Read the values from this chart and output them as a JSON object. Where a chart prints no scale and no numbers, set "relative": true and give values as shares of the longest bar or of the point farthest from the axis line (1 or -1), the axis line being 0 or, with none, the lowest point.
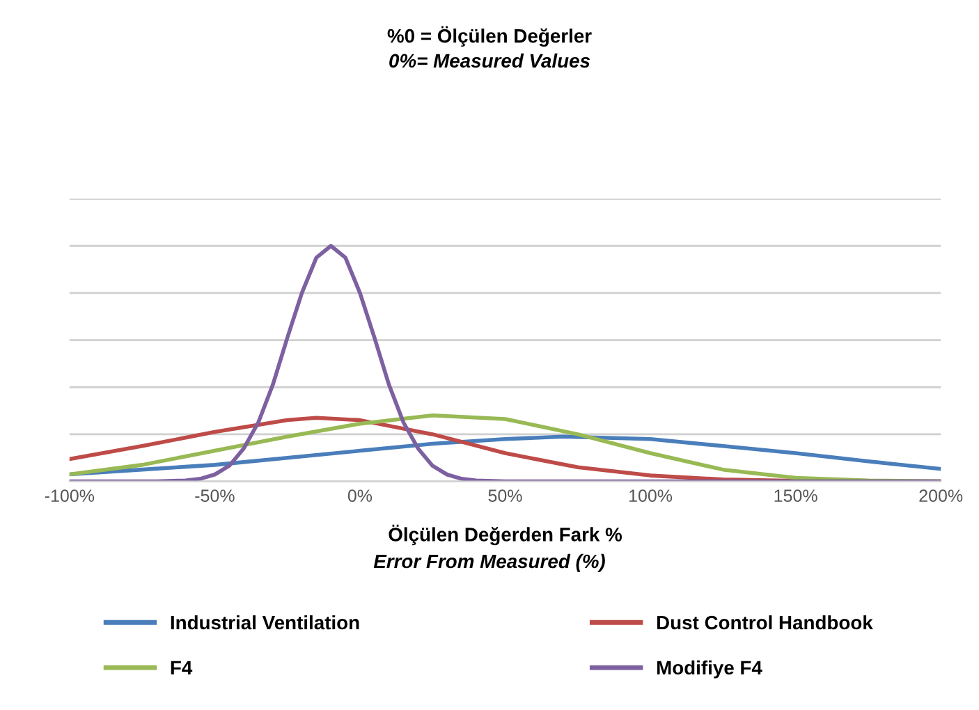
{
  "chart_data": {
    "type": "line",
    "title": "%0 = Ölçülen Değerler",
    "subtitle": "0%= Measured Values",
    "xlabel": "Ölçülen Değerden Fark %",
    "annotations": [
      "Error From Measured (%)"
    ],
    "relative": true,
    "xlim": [
      -100,
      200
    ],
    "xticks": [
      {
        "value": -100,
        "label": "-100%"
      },
      {
        "value": -50,
        "label": "-50%"
      },
      {
        "value": 0,
        "label": "0%"
      },
      {
        "value": 50,
        "label": "50%"
      },
      {
        "value": 100,
        "label": "100%"
      },
      {
        "value": 150,
        "label": "150%"
      },
      {
        "value": 200,
        "label": "200%"
      }
    ],
    "grid": "y",
    "legend": "bottom",
    "marker": "none",
    "line_style": "solid",
    "series": [
      {
        "name": "Industrial Ventilation",
        "color": "#4a7ebb",
        "x": [
          -100,
          -75,
          -50,
          -25,
          0,
          25,
          50,
          70,
          100,
          125,
          150,
          175,
          200
        ],
        "values": [
          0.03,
          0.05,
          0.07,
          0.1,
          0.13,
          0.16,
          0.18,
          0.19,
          0.18,
          0.15,
          0.12,
          0.085,
          0.053
        ]
      },
      {
        "name": "Dust Control Handbook",
        "color": "#be4b48",
        "x": [
          -100,
          -75,
          -50,
          -25,
          -15,
          0,
          25,
          50,
          75,
          100,
          125,
          150,
          175,
          200
        ],
        "values": [
          0.095,
          0.15,
          0.21,
          0.26,
          0.27,
          0.26,
          0.2,
          0.12,
          0.06,
          0.025,
          0.008,
          0.002,
          0,
          0
        ]
      },
      {
        "name": "F4",
        "color": "#98b954",
        "x": [
          -100,
          -75,
          -50,
          -25,
          0,
          25,
          50,
          75,
          100,
          125,
          150,
          175,
          200
        ],
        "values": [
          0.03,
          0.07,
          0.13,
          0.19,
          0.245,
          0.28,
          0.265,
          0.2,
          0.12,
          0.05,
          0.015,
          0.004,
          0
        ]
      },
      {
        "name": "Modifiye F4",
        "color": "#7d60a0",
        "x": [
          -100,
          -70,
          -60,
          -55,
          -50,
          -45,
          -40,
          -35,
          -30,
          -25,
          -20,
          -15,
          -10,
          -5,
          0,
          5,
          10,
          15,
          20,
          25,
          30,
          35,
          40,
          50,
          70,
          100,
          200
        ],
        "values": [
          0,
          0,
          0.004,
          0.011,
          0.029,
          0.066,
          0.14,
          0.25,
          0.41,
          0.61,
          0.8,
          0.95,
          1,
          0.95,
          0.8,
          0.61,
          0.41,
          0.25,
          0.14,
          0.066,
          0.029,
          0.011,
          0.004,
          0,
          0,
          0,
          0
        ]
      }
    ]
  }
}
